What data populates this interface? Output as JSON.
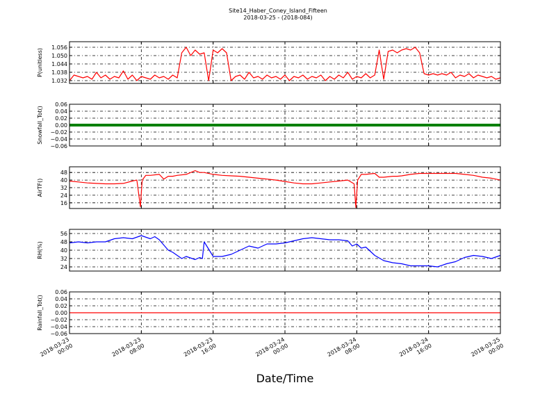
{
  "figure": {
    "title": "Site14_Haber_Coney_Island_Fifteen",
    "subtitle": "2018-03-25 - (2018-084)",
    "xlabel": "Date/Time"
  },
  "chart_data": [
    {
      "type": "line",
      "ylabel": "P(unitless)",
      "color": "#ff0000",
      "ylim": [
        1.03,
        1.06
      ],
      "yticks": [
        1.032,
        1.038,
        1.044,
        1.05,
        1.056
      ],
      "ytick_labels": [
        "1.032",
        "1.038",
        "1.044",
        "1.050",
        "1.056"
      ],
      "grid": true,
      "x": [
        0,
        0.5,
        1,
        1.5,
        2,
        2.5,
        3,
        3.5,
        4,
        4.5,
        5,
        5.5,
        6,
        6.5,
        7,
        7.5,
        8,
        8.5,
        9,
        9.5,
        10,
        10.5,
        11,
        11.5,
        12,
        12.5,
        13,
        13.5,
        14,
        14.5,
        15,
        15.5,
        16,
        16.5,
        17,
        17.5,
        18,
        18.5,
        19,
        19.5,
        20,
        20.5,
        21,
        21.5,
        22,
        22.5,
        23,
        23.5,
        24,
        24.5,
        25,
        25.5,
        26,
        26.5,
        27,
        27.5,
        28,
        28.5,
        29,
        29.5,
        30,
        30.5,
        31,
        31.5,
        32,
        32.5,
        33,
        33.5,
        34,
        34.5,
        35,
        35.5,
        36,
        36.5,
        37,
        37.5,
        38,
        38.5,
        39,
        39.5,
        40,
        40.5,
        41,
        41.5,
        42,
        42.5,
        43,
        43.5,
        44,
        44.5,
        45,
        45.5,
        46,
        46.5,
        47,
        47.5,
        48
      ],
      "values": [
        1.032,
        1.036,
        1.035,
        1.034,
        1.035,
        1.033,
        1.038,
        1.034,
        1.036,
        1.033,
        1.035,
        1.034,
        1.039,
        1.033,
        1.036,
        1.032,
        1.035,
        1.034,
        1.033,
        1.036,
        1.034,
        1.035,
        1.033,
        1.036,
        1.034,
        1.052,
        1.056,
        1.05,
        1.054,
        1.051,
        1.052,
        1.032,
        1.054,
        1.052,
        1.055,
        1.052,
        1.032,
        1.035,
        1.036,
        1.033,
        1.038,
        1.034,
        1.035,
        1.033,
        1.036,
        1.034,
        1.035,
        1.033,
        1.036,
        1.032,
        1.035,
        1.034,
        1.036,
        1.033,
        1.035,
        1.034,
        1.036,
        1.032,
        1.035,
        1.033,
        1.036,
        1.034,
        1.038,
        1.033,
        1.035,
        1.034,
        1.037,
        1.034,
        1.036,
        1.054,
        1.033,
        1.053,
        1.054,
        1.052,
        1.054,
        1.055,
        1.054,
        1.056,
        1.052,
        1.037,
        1.036,
        1.037,
        1.036,
        1.037,
        1.036,
        1.038,
        1.034,
        1.036,
        1.035,
        1.037,
        1.034,
        1.036,
        1.035,
        1.034,
        1.035,
        1.033,
        1.034
      ]
    },
    {
      "type": "line",
      "ylabel": "Snowfall_Tot()",
      "color": "#008000",
      "ylim": [
        -0.06,
        0.06
      ],
      "yticks": [
        -0.06,
        -0.04,
        -0.02,
        0.0,
        0.02,
        0.04,
        0.06
      ],
      "ytick_labels": [
        "−0.06",
        "−0.04",
        "−0.02",
        "0.00",
        "0.02",
        "0.04",
        "0.06"
      ],
      "grid": true,
      "x": [
        0,
        48
      ],
      "values": [
        0,
        0
      ]
    },
    {
      "type": "line",
      "ylabel": "AirTF()",
      "color": "#ff0000",
      "ylim": [
        10,
        54
      ],
      "yticks": [
        16,
        24,
        32,
        40,
        48
      ],
      "ytick_labels": [
        "16",
        "24",
        "32",
        "40",
        "48"
      ],
      "grid": true,
      "x": [
        0,
        1,
        2,
        3,
        4,
        5,
        6,
        7,
        7.5,
        7.9,
        8.1,
        8.5,
        9,
        10,
        10.5,
        11,
        11.5,
        12,
        13,
        14,
        14.5,
        15,
        16,
        17,
        18,
        19,
        20,
        21,
        22,
        23,
        24,
        25,
        26,
        27,
        28,
        29,
        30,
        31,
        31.7,
        31.9,
        32.1,
        32.5,
        33,
        34,
        34.5,
        35,
        36,
        36.5,
        37,
        38,
        39,
        40,
        41,
        42,
        43,
        44,
        45,
        46,
        47,
        48
      ],
      "values": [
        39,
        38,
        37,
        36.5,
        36,
        36,
        36.5,
        39,
        40,
        12,
        40,
        45,
        45,
        46,
        41,
        44,
        44,
        45,
        46,
        50,
        48,
        48,
        46,
        45,
        44.5,
        44,
        43,
        42,
        41,
        40,
        38.5,
        37,
        36,
        36,
        37,
        38,
        39,
        40,
        36,
        11,
        40,
        46,
        46,
        47,
        43,
        43,
        44,
        44,
        44.5,
        46,
        47,
        47,
        47,
        47,
        47,
        46,
        45,
        43,
        42,
        40
      ]
    },
    {
      "type": "line",
      "ylabel": "RH(%)",
      "color": "#0000ff",
      "ylim": [
        20,
        60
      ],
      "yticks": [
        24,
        32,
        40,
        48,
        56
      ],
      "ytick_labels": [
        "24",
        "32",
        "40",
        "48",
        "56"
      ],
      "grid": true,
      "x": [
        0,
        1,
        2,
        3,
        4,
        5,
        6,
        7,
        8,
        9,
        9.5,
        10,
        10.5,
        11,
        11.5,
        12,
        12.5,
        13,
        14,
        14.5,
        14.8,
        15,
        16,
        17,
        18,
        19,
        20,
        21,
        22,
        23,
        24,
        25,
        26,
        27,
        28,
        29,
        30,
        31,
        31.5,
        32,
        32.5,
        33,
        34,
        35,
        36,
        37,
        38,
        39,
        40,
        41,
        42,
        43,
        44,
        45,
        46,
        47,
        48
      ],
      "values": [
        47,
        48,
        47,
        48,
        48,
        51,
        52,
        51,
        54,
        51,
        53,
        50,
        45,
        40,
        38,
        35,
        32,
        34,
        31,
        33,
        32,
        48,
        34,
        34,
        36,
        40,
        44,
        42,
        46,
        46,
        47,
        49,
        51,
        52,
        51,
        50,
        50,
        49,
        44,
        46,
        42,
        43,
        35,
        30,
        28,
        27,
        25,
        25,
        25,
        24,
        27,
        29,
        33,
        35,
        34,
        32,
        35
      ]
    },
    {
      "type": "line",
      "ylabel": "Rainfall_Tot()",
      "color": "#ff0000",
      "ylim": [
        -0.06,
        0.06
      ],
      "yticks": [
        -0.06,
        -0.04,
        -0.02,
        0.0,
        0.02,
        0.04,
        0.06
      ],
      "ytick_labels": [
        "−0.06",
        "−0.04",
        "−0.02",
        "0.00",
        "0.02",
        "0.04",
        "0.06"
      ],
      "grid": true,
      "x": [
        0,
        48
      ],
      "values": [
        0,
        0
      ]
    }
  ],
  "x_axis": {
    "xlim": [
      0,
      48
    ],
    "ticks": [
      0,
      8,
      16,
      24,
      32,
      40,
      48
    ],
    "tick_labels": [
      [
        "2018-03-23",
        "00:00"
      ],
      [
        "2018-03-23",
        "08:00"
      ],
      [
        "2018-03-23",
        "16:00"
      ],
      [
        "2018-03-24",
        "00:00"
      ],
      [
        "2018-03-24",
        "08:00"
      ],
      [
        "2018-03-24",
        "16:00"
      ],
      [
        "2018-03-25",
        "00:00"
      ]
    ]
  }
}
